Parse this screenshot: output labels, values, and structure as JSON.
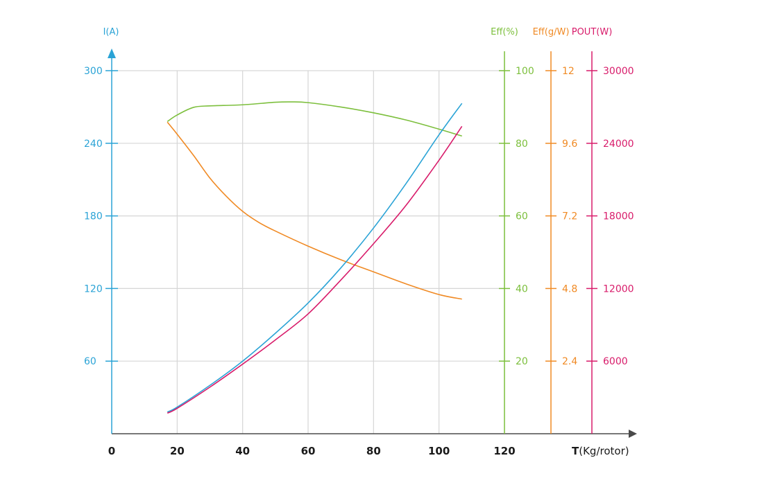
{
  "chart_data": {
    "type": "line",
    "xlabel_bold": "T",
    "xlabel_rest": "(Kg/rotor)",
    "x_ticks": [
      "0",
      "20",
      "40",
      "60",
      "80",
      "100",
      "120"
    ],
    "xlim": [
      0,
      120
    ],
    "grid": true,
    "axes": [
      {
        "id": "current",
        "label": "I(A)",
        "color": "#2aa3d6",
        "range": [
          0,
          300
        ],
        "ticks": [
          "60",
          "120",
          "180",
          "240",
          "300"
        ],
        "tick_values": [
          60,
          120,
          180,
          240,
          300
        ]
      },
      {
        "id": "eff_pct",
        "label": "Eff(%)",
        "color": "#7cbf3c",
        "range": [
          0,
          100
        ],
        "ticks": [
          "20",
          "40",
          "60",
          "80",
          "100"
        ],
        "tick_values": [
          20,
          40,
          60,
          80,
          100
        ]
      },
      {
        "id": "eff_gw",
        "label": "Eff(g/W)",
        "color": "#f08a24",
        "range": [
          0,
          12
        ],
        "ticks": [
          "2.4",
          "4.8",
          "7.2",
          "9.6",
          "12"
        ],
        "tick_values": [
          2.4,
          4.8,
          7.2,
          9.6,
          12
        ]
      },
      {
        "id": "pout",
        "label": "POUT(W)",
        "color": "#d81b6a",
        "range": [
          0,
          30000
        ],
        "ticks": [
          "6000",
          "12000",
          "18000",
          "24000",
          "30000"
        ],
        "tick_values": [
          6000,
          12000,
          18000,
          24000,
          30000
        ]
      }
    ],
    "series": [
      {
        "axis": "eff_pct",
        "color": "#7cbf3c",
        "x": [
          17,
          20,
          25,
          30,
          40,
          50,
          55,
          60,
          70,
          80,
          90,
          100,
          107
        ],
        "y": [
          86,
          87.8,
          89.9,
          90.3,
          90.6,
          91.3,
          91.4,
          91.2,
          90,
          88.4,
          86.4,
          83.9,
          82
        ]
      },
      {
        "axis": "eff_gw",
        "color": "#f08a24",
        "x": [
          17,
          20,
          25,
          30,
          35,
          40,
          45,
          50,
          60,
          70,
          80,
          90,
          100,
          107
        ],
        "y": [
          10.3,
          9.9,
          9.2,
          8.45,
          7.85,
          7.35,
          6.98,
          6.7,
          6.2,
          5.75,
          5.35,
          4.95,
          4.6,
          4.45
        ]
      },
      {
        "axis": "current",
        "color": "#2aa3d6",
        "x": [
          17,
          20,
          30,
          40,
          50,
          60,
          70,
          80,
          90,
          100,
          107
        ],
        "y": [
          18,
          22,
          40,
          60,
          83,
          108,
          137,
          170,
          207,
          247,
          273
        ]
      },
      {
        "axis": "pout",
        "color": "#d81b6a",
        "x": [
          17,
          20,
          30,
          40,
          50,
          60,
          70,
          80,
          90,
          100,
          107
        ],
        "y": [
          1700,
          2100,
          3850,
          5750,
          7750,
          9900,
          12700,
          15700,
          18900,
          22600,
          25400
        ]
      }
    ]
  }
}
